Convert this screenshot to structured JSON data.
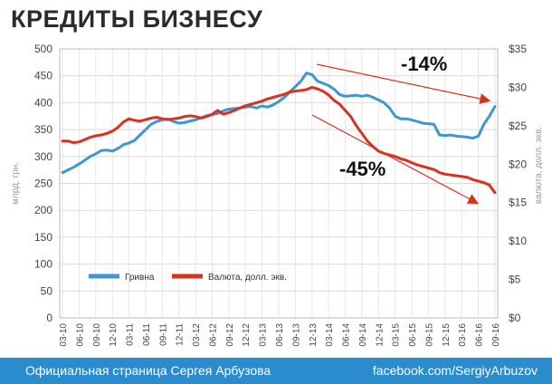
{
  "page": {
    "title": "КРЕДИТЫ БИЗНЕСУ"
  },
  "footer": {
    "left": "Официальная страница Сергея Арбузова",
    "right": "facebook.com/SergiyArbuzov"
  },
  "colors": {
    "uah": "#3d97d3",
    "fx": "#d8321f",
    "arrow": "#d8321f",
    "grid": "#d9d9d9",
    "footer": "#2a8ccd"
  },
  "chart_data": {
    "type": "line",
    "ylabel": "млрд. грн.",
    "y2label": "валюта, долл. экв.",
    "ylim": [
      0,
      500
    ],
    "y2lim": [
      0,
      35
    ],
    "yticks": [
      0,
      50,
      100,
      150,
      200,
      250,
      300,
      350,
      400,
      450,
      500
    ],
    "y2ticks": [
      "$0",
      "$5",
      "$10",
      "$15",
      "$20",
      "$25",
      "$30",
      "$35"
    ],
    "y2tickvalues": [
      0,
      5,
      10,
      15,
      20,
      25,
      30,
      35
    ],
    "grid": true,
    "legend": "bottom-left",
    "x": [
      "03-10",
      "04-10",
      "05-10",
      "06-10",
      "07-10",
      "08-10",
      "09-10",
      "10-10",
      "11-10",
      "12-10",
      "01-11",
      "02-11",
      "03-11",
      "04-11",
      "05-11",
      "06-11",
      "07-11",
      "08-11",
      "09-11",
      "10-11",
      "11-11",
      "12-11",
      "01-12",
      "02-12",
      "03-12",
      "04-12",
      "05-12",
      "06-12",
      "07-12",
      "08-12",
      "09-12",
      "10-12",
      "11-12",
      "12-12",
      "01-13",
      "02-13",
      "03-13",
      "04-13",
      "05-13",
      "06-13",
      "07-13",
      "08-13",
      "09-13",
      "10-13",
      "11-13",
      "12-13",
      "01-14",
      "02-14",
      "03-14",
      "04-14",
      "05-14",
      "06-14",
      "07-14",
      "08-14",
      "09-14",
      "10-14",
      "11-14",
      "12-14",
      "01-15",
      "02-15",
      "03-15",
      "04-15",
      "05-15",
      "06-15",
      "07-15",
      "08-15",
      "09-15",
      "10-15",
      "11-15",
      "12-15",
      "01-16",
      "02-16",
      "03-16",
      "04-16",
      "05-16",
      "06-16",
      "07-16",
      "08-16",
      "09-16"
    ],
    "xtick_labels": [
      "03-10",
      "06-10",
      "09-10",
      "12-10",
      "03-11",
      "06-11",
      "09-11",
      "12-11",
      "03-12",
      "06-12",
      "09-12",
      "12-12",
      "03-13",
      "06-13",
      "09-13",
      "12-13",
      "03-14",
      "06-14",
      "09-14",
      "12-14",
      "03-15",
      "06-15",
      "09-15",
      "12-15",
      "03-16",
      "06-16",
      "09-16"
    ],
    "series": [
      {
        "name": "Гривна",
        "axis": "left",
        "color": "#3d97d3",
        "values": [
          270,
          275,
          280,
          286,
          293,
          300,
          305,
          311,
          312,
          310,
          315,
          322,
          325,
          330,
          340,
          350,
          360,
          365,
          368,
          370,
          365,
          362,
          363,
          366,
          368,
          372,
          376,
          378,
          380,
          385,
          388,
          389,
          390,
          392,
          393,
          390,
          394,
          392,
          396,
          402,
          410,
          420,
          430,
          440,
          455,
          452,
          440,
          436,
          432,
          425,
          415,
          412,
          413,
          414,
          412,
          414,
          410,
          405,
          400,
          390,
          375,
          370,
          370,
          368,
          365,
          362,
          361,
          360,
          340,
          339,
          340,
          338,
          337,
          336,
          334,
          338,
          360,
          375,
          393
        ]
      },
      {
        "name": "Валюта, долл. экв.",
        "axis": "right",
        "color": "#d8321f",
        "values": [
          23.0,
          23.0,
          22.8,
          22.9,
          23.2,
          23.5,
          23.7,
          23.8,
          24.0,
          24.3,
          24.8,
          25.5,
          25.9,
          25.7,
          25.6,
          25.8,
          26.0,
          26.1,
          25.9,
          25.8,
          25.9,
          26.0,
          26.2,
          26.3,
          26.2,
          26.0,
          26.2,
          26.5,
          27.0,
          26.5,
          26.7,
          27.0,
          27.3,
          27.6,
          27.8,
          28.0,
          28.2,
          28.5,
          28.7,
          28.9,
          29.1,
          29.4,
          29.5,
          29.6,
          29.7,
          30.0,
          29.8,
          29.5,
          29.0,
          28.3,
          27.8,
          27.0,
          26.2,
          25.0,
          24.0,
          23.0,
          22.3,
          21.7,
          21.4,
          21.2,
          21.0,
          20.7,
          20.5,
          20.2,
          19.9,
          19.7,
          19.5,
          19.3,
          18.9,
          18.7,
          18.6,
          18.5,
          18.4,
          18.3,
          18.0,
          17.8,
          17.6,
          17.3,
          16.3
        ]
      }
    ],
    "annotations": [
      {
        "text": "-14%",
        "series": "Гривна"
      },
      {
        "text": "-45%",
        "series": "Валюта, долл. экв."
      }
    ]
  }
}
